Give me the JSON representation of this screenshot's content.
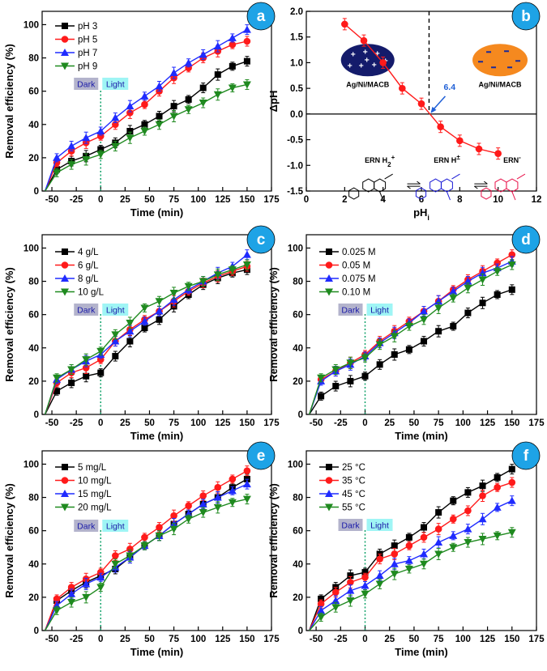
{
  "colors": {
    "black": "#000000",
    "red": "#ff1a1a",
    "blue": "#1f2bff",
    "green": "#1f8a1f",
    "badge": "#1ea3e6",
    "dark_box": "#b3b3cc",
    "light_box": "#9ff5f5",
    "dark_text": "#1a1aa8",
    "light_text": "#1a1aa8"
  },
  "common": {
    "dark_label": "Dark",
    "light_label": "Light"
  },
  "chart_data": [
    {
      "id": "a",
      "type": "line",
      "badge": "a",
      "xlabel": "Time (min)",
      "ylabel": "Removal efficiency (%)",
      "xlim": [
        -60,
        175
      ],
      "ylim": [
        0,
        108
      ],
      "xticks": [
        -50,
        -25,
        0,
        25,
        50,
        75,
        100,
        125,
        150,
        175
      ],
      "yticks": [
        0,
        20,
        40,
        60,
        80,
        100
      ],
      "x": [
        -45,
        -30,
        -15,
        0,
        15,
        30,
        45,
        60,
        75,
        90,
        105,
        120,
        135,
        150
      ],
      "series": [
        {
          "name": "pH 3",
          "color": "black",
          "marker": "square",
          "values": [
            13,
            18,
            21,
            25,
            29,
            36,
            40,
            45,
            51,
            55,
            62,
            70,
            75,
            78
          ]
        },
        {
          "name": "pH 5",
          "color": "red",
          "marker": "circle",
          "values": [
            17,
            24,
            29,
            33,
            40,
            47,
            52,
            60,
            68,
            74,
            80,
            84,
            88,
            90
          ]
        },
        {
          "name": "pH 7",
          "color": "blue",
          "marker": "triangle-up",
          "values": [
            20,
            27,
            32,
            36,
            44,
            51,
            57,
            63,
            71,
            77,
            82,
            87,
            92,
            97
          ]
        },
        {
          "name": "pH 9",
          "color": "green",
          "marker": "triangle-down",
          "values": [
            11,
            16,
            19,
            22,
            27,
            32,
            36,
            40,
            45,
            49,
            53,
            58,
            62,
            64
          ]
        }
      ]
    },
    {
      "id": "b",
      "type": "line",
      "badge": "b",
      "xlabel": "pHi",
      "ylabel": "ΔpH",
      "xlim": [
        0,
        12
      ],
      "ylim": [
        -1.5,
        2.0
      ],
      "xticks": [
        0,
        2,
        4,
        6,
        8,
        10,
        12
      ],
      "yticks": [
        -1.5,
        -1.0,
        -0.5,
        0.0,
        0.5,
        1.0,
        1.5,
        2.0
      ],
      "x": [
        2,
        3,
        4,
        5,
        6,
        7,
        8,
        9,
        10
      ],
      "series": [
        {
          "name": "ΔpH",
          "color": "red",
          "marker": "circle",
          "values": [
            1.75,
            1.43,
            1.0,
            0.5,
            0.2,
            -0.25,
            -0.52,
            -0.68,
            -0.77
          ]
        }
      ],
      "annotations": {
        "pzc_value": "6.4",
        "ellipse_left_label": "Ag/Ni/MACB",
        "ellipse_right_label": "Ag/Ni/MACB",
        "species": [
          {
            "label": "ERN H",
            "suffix": "2",
            "charge": "+",
            "color": "#000000"
          },
          {
            "label": "ERN H",
            "suffix": "",
            "charge": "±",
            "color": "#1a1ad6"
          },
          {
            "label": "ERN",
            "suffix": "",
            "charge": "-",
            "color": "#e8124a"
          }
        ]
      }
    },
    {
      "id": "c",
      "type": "line",
      "badge": "c",
      "xlabel": "Time (min)",
      "ylabel": "Removal efficiency (%)",
      "xlim": [
        -60,
        175
      ],
      "ylim": [
        0,
        108
      ],
      "xticks": [
        -50,
        -25,
        0,
        25,
        50,
        75,
        100,
        125,
        150,
        175
      ],
      "yticks": [
        0,
        20,
        40,
        60,
        80,
        100
      ],
      "x": [
        -45,
        -30,
        -15,
        0,
        15,
        30,
        45,
        60,
        75,
        90,
        105,
        120,
        135,
        150
      ],
      "series": [
        {
          "name": "4 g/L",
          "color": "black",
          "marker": "square",
          "values": [
            14,
            19,
            23,
            25,
            35,
            44,
            52,
            57,
            65,
            72,
            78,
            82,
            85,
            87
          ]
        },
        {
          "name": "6 g/L",
          "color": "red",
          "marker": "circle",
          "values": [
            19,
            25,
            28,
            33,
            44,
            51,
            57,
            62,
            68,
            74,
            79,
            83,
            86,
            89
          ]
        },
        {
          "name": "8 g/L",
          "color": "blue",
          "marker": "triangle-up",
          "values": [
            21,
            27,
            32,
            36,
            44,
            50,
            56,
            62,
            69,
            75,
            80,
            85,
            89,
            96
          ]
        },
        {
          "name": "10 g/L",
          "color": "green",
          "marker": "triangle-down",
          "values": [
            22,
            27,
            33,
            38,
            48,
            55,
            64,
            68,
            73,
            77,
            80,
            84,
            87,
            90
          ]
        }
      ]
    },
    {
      "id": "d",
      "type": "line",
      "badge": "d",
      "xlabel": "Time (min)",
      "ylabel": "Removal efficiency (%)",
      "xlim": [
        -60,
        175
      ],
      "ylim": [
        0,
        108
      ],
      "xticks": [
        -50,
        -25,
        0,
        25,
        50,
        75,
        100,
        125,
        150,
        175
      ],
      "yticks": [
        0,
        20,
        40,
        60,
        80,
        100
      ],
      "x": [
        -45,
        -30,
        -15,
        0,
        15,
        30,
        45,
        60,
        75,
        90,
        105,
        120,
        135,
        150
      ],
      "series": [
        {
          "name": "0.025 M",
          "color": "black",
          "marker": "square",
          "values": [
            11,
            17,
            20,
            23,
            30,
            36,
            39,
            44,
            50,
            53,
            61,
            67,
            72,
            75
          ]
        },
        {
          "name": "0.05 M",
          "color": "red",
          "marker": "circle",
          "values": [
            21,
            26,
            31,
            36,
            44,
            50,
            56,
            62,
            68,
            75,
            81,
            86,
            91,
            96
          ]
        },
        {
          "name": "0.075 M",
          "color": "blue",
          "marker": "triangle-up",
          "values": [
            20,
            26,
            30,
            35,
            43,
            49,
            55,
            62,
            68,
            74,
            80,
            85,
            88,
            92
          ]
        },
        {
          "name": "0.10 M",
          "color": "green",
          "marker": "triangle-down",
          "values": [
            22,
            27,
            31,
            34,
            42,
            47,
            53,
            57,
            64,
            70,
            76,
            81,
            86,
            90
          ]
        }
      ]
    },
    {
      "id": "e",
      "type": "line",
      "badge": "e",
      "xlabel": "Time (min)",
      "ylabel": "Removal efficiency (%)",
      "xlim": [
        -60,
        175
      ],
      "ylim": [
        0,
        108
      ],
      "xticks": [
        -50,
        -25,
        0,
        25,
        50,
        75,
        100,
        125,
        150,
        175
      ],
      "yticks": [
        0,
        20,
        40,
        60,
        80,
        100
      ],
      "x": [
        -45,
        -30,
        -15,
        0,
        15,
        30,
        45,
        60,
        75,
        90,
        105,
        120,
        135,
        150
      ],
      "series": [
        {
          "name": "5 mg/L",
          "color": "black",
          "marker": "square",
          "values": [
            18,
            24,
            29,
            33,
            37,
            44,
            51,
            57,
            64,
            70,
            76,
            80,
            86,
            91
          ]
        },
        {
          "name": "10 mg/L",
          "color": "red",
          "marker": "circle",
          "values": [
            19,
            26,
            31,
            35,
            45,
            49,
            56,
            62,
            69,
            75,
            81,
            86,
            91,
            96
          ]
        },
        {
          "name": "15 mg/L",
          "color": "blue",
          "marker": "triangle-up",
          "values": [
            15,
            22,
            28,
            32,
            38,
            44,
            51,
            57,
            64,
            70,
            76,
            80,
            84,
            88
          ]
        },
        {
          "name": "20 mg/L",
          "color": "green",
          "marker": "triangle-down",
          "values": [
            12,
            17,
            20,
            26,
            40,
            45,
            51,
            57,
            61,
            67,
            71,
            74,
            77,
            79
          ]
        }
      ]
    },
    {
      "id": "f",
      "type": "line",
      "badge": "f",
      "xlabel": "Time (min)",
      "ylabel": "Removal efficiency (%)",
      "xlim": [
        -60,
        175
      ],
      "ylim": [
        0,
        108
      ],
      "xticks": [
        -50,
        -25,
        0,
        25,
        50,
        75,
        100,
        125,
        150,
        175
      ],
      "yticks": [
        0,
        20,
        40,
        60,
        80,
        100
      ],
      "x": [
        -45,
        -30,
        -15,
        0,
        15,
        30,
        45,
        60,
        75,
        90,
        105,
        120,
        135,
        150
      ],
      "series": [
        {
          "name": "25 °C",
          "color": "black",
          "marker": "square",
          "values": [
            19,
            26,
            33,
            35,
            46,
            51,
            56,
            62,
            71,
            78,
            83,
            87,
            92,
            97
          ]
        },
        {
          "name": "35 °C",
          "color": "red",
          "marker": "circle",
          "values": [
            16,
            23,
            29,
            32,
            43,
            46,
            51,
            56,
            61,
            67,
            72,
            81,
            86,
            89
          ]
        },
        {
          "name": "45 °C",
          "color": "blue",
          "marker": "triangle-up",
          "values": [
            12,
            18,
            24,
            27,
            33,
            40,
            42,
            46,
            53,
            57,
            61,
            67,
            74,
            78
          ]
        },
        {
          "name": "55 °C",
          "color": "green",
          "marker": "triangle-down",
          "values": [
            8,
            14,
            18,
            22,
            28,
            34,
            37,
            40,
            46,
            50,
            53,
            55,
            57,
            59
          ]
        }
      ]
    }
  ]
}
